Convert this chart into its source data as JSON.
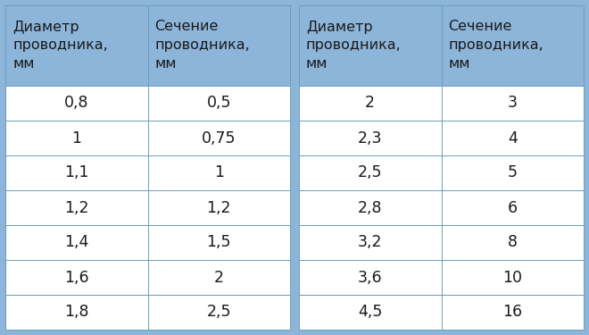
{
  "header_bg": "#8DB4D9",
  "row_bg": "#FFFFFF",
  "outer_bg": "#8DB4D9",
  "border_color": "#6A9EC0",
  "text_color": "#1A1A1A",
  "header_text": [
    "Диаметр\nпроводника,\nмм",
    "Сечение\nпроводника,\nмм",
    "Диаметр\nпроводника,\nмм",
    "Сечение\nпроводника,\nмм"
  ],
  "left_col1": [
    "0,8",
    "1",
    "1,1",
    "1,2",
    "1,4",
    "1,6",
    "1,8"
  ],
  "left_col2": [
    "0,5",
    "0,75",
    "1",
    "1,2",
    "1,5",
    "2",
    "2,5"
  ],
  "right_col1": [
    "2",
    "2,3",
    "2,5",
    "2,8",
    "3,2",
    "3,6",
    "4,5"
  ],
  "right_col2": [
    "3",
    "4",
    "5",
    "6",
    "8",
    "10",
    "16"
  ],
  "font_size_header": 11.5,
  "font_size_data": 12.5
}
